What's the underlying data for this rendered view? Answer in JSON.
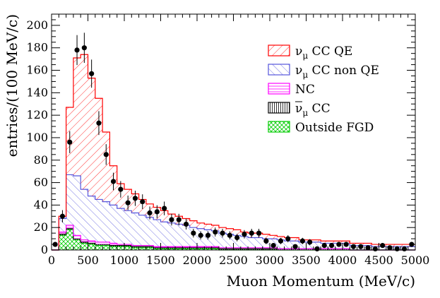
{
  "chart_data": {
    "type": "histogram",
    "xlabel": "Muon Momentum (MeV/c)",
    "ylabel": "entries/(100 MeV/c)",
    "xlim": [
      0,
      5000
    ],
    "ylim": [
      0,
      210
    ],
    "bin_width": 100,
    "x_ticks": [
      0,
      500,
      1000,
      1500,
      2000,
      2500,
      3000,
      3500,
      4000,
      4500,
      5000
    ],
    "y_ticks": [
      0,
      20,
      40,
      60,
      80,
      100,
      120,
      140,
      160,
      180,
      200
    ],
    "legend_position": "top-right",
    "series": [
      {
        "name": "Outside FGD",
        "label": "Outside FGD",
        "color": "#00cc00",
        "values": [
          0,
          13,
          18,
          9,
          6,
          5,
          4,
          4,
          3,
          3,
          3,
          2,
          2,
          2,
          1,
          1,
          1,
          1,
          1,
          1,
          1,
          1,
          1,
          0,
          0,
          0,
          0,
          0,
          0,
          0,
          0,
          0,
          0,
          0,
          0,
          0,
          0,
          0,
          0,
          0,
          0,
          0,
          0,
          0,
          0,
          0,
          0,
          0,
          0,
          0
        ]
      },
      {
        "name": "anti-numu CC",
        "label_main": "ν",
        "label_sub": "μ",
        "label_suffix": " CC",
        "color": "#000000",
        "values": [
          0,
          1,
          1,
          1,
          1,
          1,
          1,
          1,
          1,
          1,
          1,
          1,
          1,
          1,
          1,
          1,
          1,
          1,
          1,
          1,
          1,
          1,
          1,
          1,
          1,
          1,
          1,
          1,
          1,
          1,
          1,
          1,
          1,
          1,
          1,
          1,
          1,
          1,
          1,
          1,
          1,
          0,
          0,
          0,
          0,
          0,
          0,
          0,
          0,
          0
        ]
      },
      {
        "name": "NC",
        "label": "NC",
        "color": "#ff00ff",
        "values": [
          0,
          2,
          3,
          3,
          2,
          2,
          2,
          2,
          2,
          1,
          1,
          1,
          1,
          1,
          1,
          1,
          1,
          1,
          1,
          1,
          1,
          1,
          1,
          1,
          1,
          1,
          1,
          1,
          1,
          1,
          1,
          0,
          0,
          0,
          0,
          0,
          0,
          0,
          0,
          0,
          0,
          0,
          0,
          0,
          0,
          0,
          0,
          0,
          0,
          0
        ]
      },
      {
        "name": "numu CC non QE",
        "label_main": "ν",
        "label_sub": "μ",
        "label_suffix": " CC non QE",
        "color": "#5555dd",
        "values": [
          0,
          12,
          45,
          53,
          45,
          40,
          38,
          36,
          34,
          32,
          30,
          29,
          27,
          25,
          24,
          22,
          21,
          20,
          19,
          17,
          16,
          15,
          14,
          13,
          12,
          11,
          10,
          9,
          9,
          8,
          8,
          8,
          7,
          7,
          6,
          6,
          6,
          5,
          5,
          5,
          5,
          4,
          4,
          4,
          3,
          3,
          3,
          3,
          3,
          3
        ]
      },
      {
        "name": "numu CC QE",
        "label_main": "ν",
        "label_sub": "μ",
        "label_suffix": " CC QE",
        "color": "#ff0000",
        "values": [
          0,
          2,
          60,
          105,
          120,
          105,
          90,
          62,
          35,
          22,
          19,
          17,
          14,
          12,
          11,
          10,
          8,
          7,
          6,
          6,
          5,
          5,
          5,
          5,
          5,
          5,
          4,
          4,
          4,
          4,
          3,
          3,
          3,
          3,
          2,
          2,
          2,
          2,
          2,
          2,
          2,
          2,
          2,
          2,
          2,
          2,
          2,
          2,
          2,
          2
        ]
      }
    ],
    "data_points": {
      "name": "Data",
      "x": [
        50,
        150,
        250,
        350,
        450,
        550,
        650,
        750,
        850,
        950,
        1050,
        1150,
        1250,
        1350,
        1450,
        1550,
        1650,
        1750,
        1850,
        1950,
        2050,
        2150,
        2250,
        2350,
        2450,
        2550,
        2650,
        2750,
        2850,
        2950,
        3050,
        3150,
        3250,
        3350,
        3450,
        3550,
        3650,
        3750,
        3850,
        3950,
        4050,
        4150,
        4250,
        4350,
        4450,
        4550,
        4650,
        4750,
        4850,
        4950
      ],
      "y": [
        5,
        30,
        96,
        178,
        180,
        157,
        113,
        85,
        61,
        54,
        42,
        46,
        43,
        33,
        34,
        37,
        27,
        27,
        23,
        15,
        13,
        13,
        16,
        15,
        13,
        11,
        14,
        15,
        15,
        8,
        4,
        8,
        10,
        3,
        8,
        7,
        1,
        4,
        4,
        5,
        5,
        3,
        3,
        2,
        1,
        4,
        2,
        1,
        1,
        5
      ]
    }
  }
}
